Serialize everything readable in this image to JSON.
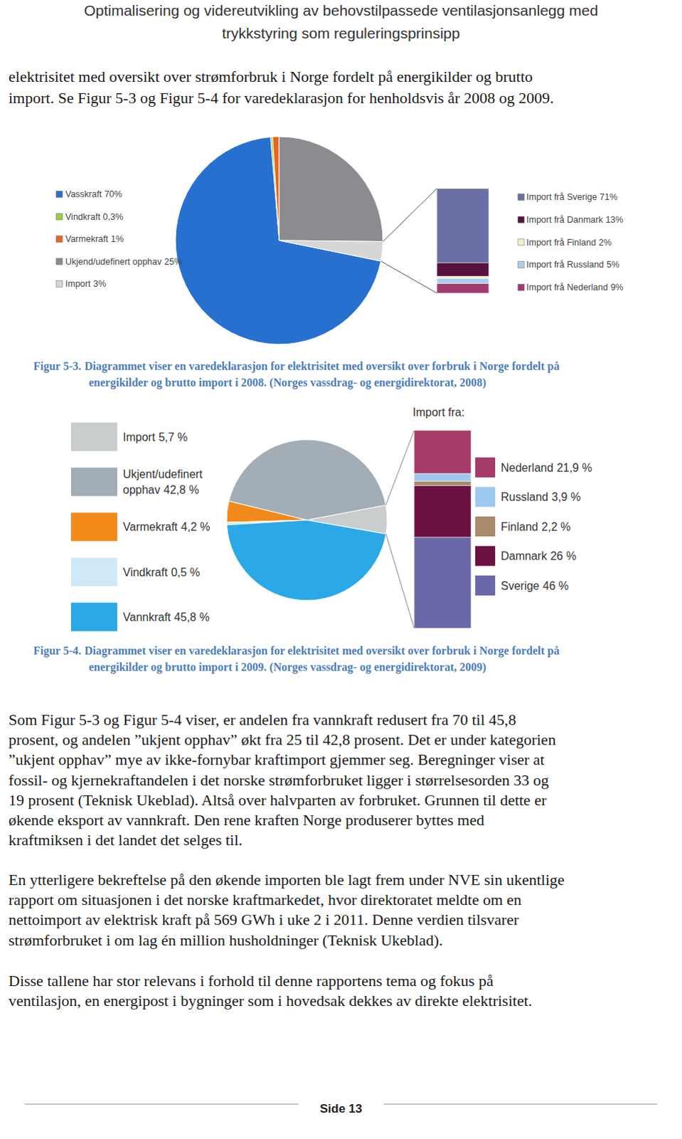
{
  "header": {
    "lines": [
      "Optimalisering og videreutvikling av behovstilpassede ventilasjonsanlegg med",
      "trykkstyring som reguleringsprinsipp"
    ]
  },
  "intro": {
    "lines": [
      "elektrisitet med oversikt over strømforbruk i Norge fordelt på energikilder og brutto",
      "import. Se Figur 5-3 og Figur 5-4 for varedeklarasjon for henholdsvis år 2008 og 2009."
    ]
  },
  "figures": [
    {
      "label": "Figur 5-3.",
      "lines": [
        "Diagrammet viser en varedeklarasjon for elektrisitet med oversikt over forbruk i Norge fordelt på",
        "energikilder og brutto import i 2008. (Norges vassdrag- og energidirektorat, 2008)"
      ]
    },
    {
      "label": "Figur 5-4.",
      "lines": [
        "Diagrammet viser en varedeklarasjon for elektrisitet med oversikt over forbruk i Norge fordelt på",
        "energikilder og brutto import i 2009. (Norges vassdrag- og energidirektorat, 2009)"
      ]
    }
  ],
  "chart_data": [
    {
      "type": "pie",
      "legend": "left",
      "categories": [
        "Vasskraft",
        "Vindkraft",
        "Varmekraft",
        "Ukjend/udefinert opphav",
        "Import"
      ],
      "values": [
        70,
        0.3,
        1,
        25,
        3
      ],
      "value_labels": [
        "70%",
        "0,3%",
        "1%",
        "25%",
        "3%"
      ],
      "colors": [
        "#2870cf",
        "#9bcf3a",
        "#e8661c",
        "#8b8b90",
        "#d6d6d6"
      ]
    },
    {
      "type": "bar",
      "stacked": true,
      "tick_labels": false,
      "legend": "right",
      "categories": [
        "Import frå Sverige",
        "Import frå Danmark",
        "Import frå Finland",
        "Import frå Russland",
        "Import frå Nederland"
      ],
      "values": [
        71,
        13,
        2,
        5,
        9
      ],
      "value_labels": [
        "71%",
        "13%",
        "2%",
        "5%",
        "9%"
      ],
      "colors": [
        "#6c6fa6",
        "#581240",
        "#f3efc8",
        "#a8d0ee",
        "#a23a70"
      ]
    },
    {
      "type": "pie",
      "legend": "left",
      "categories": [
        "Import",
        "Ukjent/udefinert opphav",
        "Varmekraft",
        "Vindkraft",
        "Vannkraft"
      ],
      "values": [
        5.7,
        42.8,
        4.2,
        0.5,
        45.8
      ],
      "value_labels": [
        "5,7 %",
        "42,8 %",
        "4,2 %",
        "0,5 %",
        "45,8 %"
      ],
      "colors": [
        "#c9cdcd",
        "#a2adb6",
        "#f28a1b",
        "#cfe9f8",
        "#2aa9e6"
      ]
    },
    {
      "type": "bar",
      "stacked": true,
      "tick_labels": false,
      "legend": "right",
      "title": "Import fra:",
      "categories": [
        "Nederland",
        "Russland",
        "Finland",
        "Damnark",
        "Sverige"
      ],
      "values": [
        21.9,
        3.9,
        2.2,
        26,
        46
      ],
      "value_labels": [
        "21,9 %",
        "3,9 %",
        "2,2 %",
        "26 %",
        "46 %"
      ],
      "colors": [
        "#a53c68",
        "#9ec8ee",
        "#a88a6c",
        "#6a1141",
        "#6b68a7"
      ]
    }
  ],
  "body": [
    [
      "Som Figur 5-3 og Figur 5-4 viser, er andelen fra vannkraft redusert fra 70 til 45,8",
      "prosent, og andelen ”ukjent opphav” økt fra 25 til 42,8 prosent. Det er under kategorien",
      "”ukjent opphav” mye av ikke-fornybar kraftimport gjemmer seg. Beregninger viser at",
      "fossil- og kjernekraftandelen i det norske strømforbruket ligger i størrelsesorden 33 og",
      "19 prosent (Teknisk Ukeblad). Altså over halvparten av forbruket. Grunnen til dette er",
      "økende eksport av vannkraft. Den rene kraften Norge produserer byttes med",
      "kraftmiksen i det landet det selges til."
    ],
    [
      "En ytterligere bekreftelse på den økende importen ble lagt frem under NVE sin ukentlige",
      "rapport om situasjonen i det norske kraftmarkedet, hvor direktoratet meldte om en",
      "nettoimport av elektrisk kraft på 569 GWh i uke 2 i 2011. Denne verdien tilsvarer",
      "strømforbruket i om lag én million husholdninger (Teknisk Ukeblad)."
    ],
    [
      "Disse tallene har stor relevans i forhold til denne rapportens tema og fokus på",
      "ventilasjon, en energipost i bygninger som i hovedsak dekkes av direkte elektrisitet."
    ]
  ],
  "footer": {
    "page": "Side 13"
  }
}
